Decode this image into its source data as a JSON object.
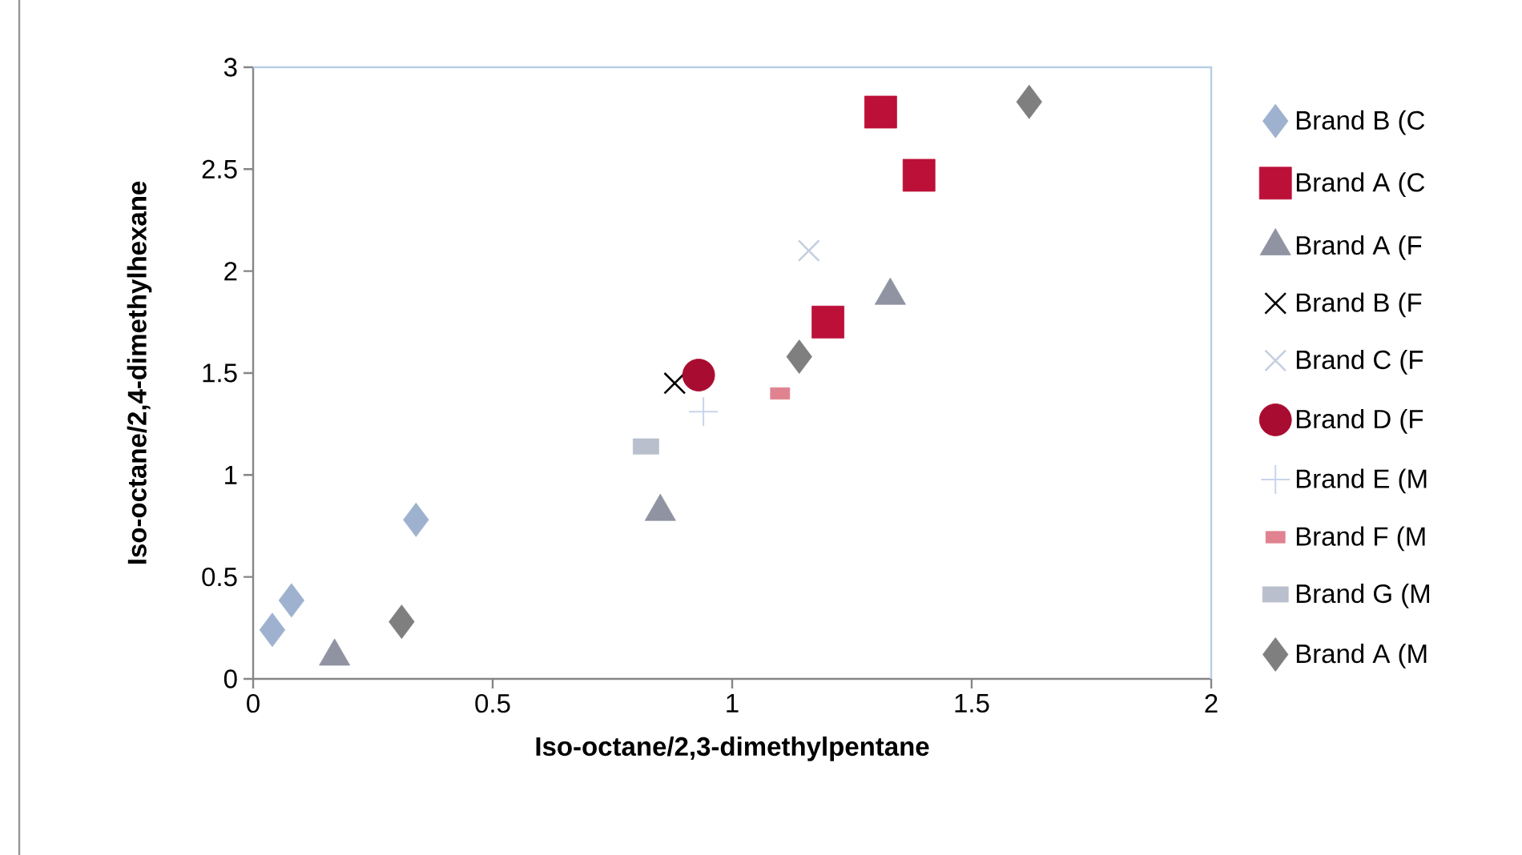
{
  "chart_data": {
    "type": "scatter",
    "xlabel": "Iso-octane/2,3-dimethylpentane",
    "ylabel": "Iso-octane/2,4-dimethylhexane",
    "xlim": [
      0,
      2
    ],
    "ylim": [
      0,
      3
    ],
    "xticks": [
      0,
      0.5,
      1,
      1.5,
      2
    ],
    "yticks": [
      0,
      0.5,
      1,
      1.5,
      2,
      2.5,
      3
    ],
    "grid": false,
    "legend": "right",
    "series": [
      {
        "name": "Brand B (C",
        "color": "#9eb2cf",
        "marker": "diamond",
        "x": [
          0.04,
          0.08,
          0.34
        ],
        "values": [
          0.24,
          0.385,
          0.78
        ]
      },
      {
        "name": "Brand A (C",
        "color": "#bc1039",
        "marker": "square",
        "x": [
          1.31,
          1.39,
          1.2
        ],
        "values": [
          2.78,
          2.47,
          1.75
        ]
      },
      {
        "name": "Brand A (F",
        "color": "#8f93a2",
        "marker": "triangle",
        "x": [
          0.17,
          0.85,
          1.33
        ],
        "values": [
          0.11,
          0.82,
          1.88
        ]
      },
      {
        "name": "Brand B (F",
        "color": "#000000",
        "marker": "cross",
        "x": [
          0.88
        ],
        "values": [
          1.45
        ]
      },
      {
        "name": "Brand C (F",
        "color": "#c5cfdf",
        "marker": "cross",
        "x": [
          1.16
        ],
        "values": [
          2.1
        ]
      },
      {
        "name": "Brand D (F",
        "color": "#a80c30",
        "marker": "circle",
        "x": [
          0.93
        ],
        "values": [
          1.49
        ]
      },
      {
        "name": "Brand E (M",
        "color": "#c8d5ea",
        "marker": "plus",
        "x": [
          0.94
        ],
        "values": [
          1.31
        ]
      },
      {
        "name": "Brand F (M",
        "color": "#e0828f",
        "x": [
          1.1
        ],
        "values": [
          1.4
        ]
      },
      {
        "name": "Brand G (M",
        "color": "#b9bfcc",
        "x": [
          0.82
        ],
        "values": [
          1.14
        ]
      },
      {
        "name": "Brand A (M",
        "color": "#7f7f7f",
        "marker": "diamond",
        "x": [
          0.31,
          1.14,
          1.62
        ],
        "values": [
          0.28,
          1.58,
          2.83
        ]
      }
    ]
  }
}
